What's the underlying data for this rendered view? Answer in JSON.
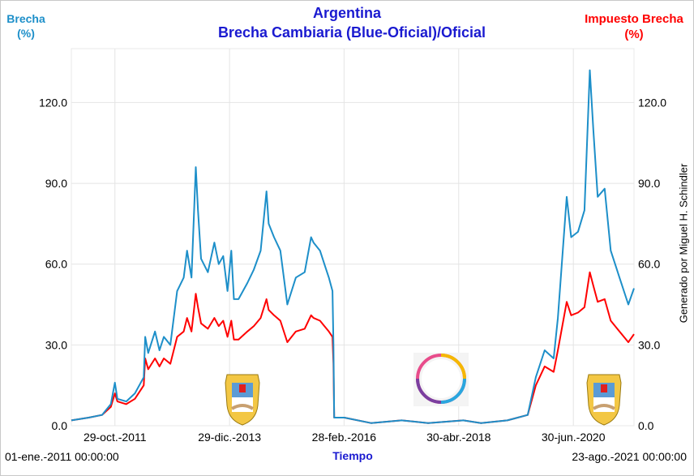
{
  "chart_data": {
    "type": "line",
    "title": "Argentina",
    "subtitle": "Brecha Cambiaria (Blue-Oficial)/Oficial",
    "ylabel_left": {
      "name": "Brecha",
      "unit": "(%)"
    },
    "ylabel_right": {
      "name": "Impuesto Brecha",
      "unit": "(%)"
    },
    "xlabel": "Tiempo",
    "x_range_labels": {
      "start": "01-ene.-2011 00:00:00",
      "end": "23-ago.-2021 00:00:00"
    },
    "credit": "Generado por Miguel H. Schindler",
    "x_domain": [
      "2011-01-01",
      "2021-08-23"
    ],
    "ylim": [
      0,
      140
    ],
    "y_ticks": [
      "0.0",
      "30.0",
      "60.0",
      "90.0",
      "120.0"
    ],
    "x_ticks": [
      {
        "date": "2011-10-29",
        "label": "29-oct.-2011"
      },
      {
        "date": "2013-12-29",
        "label": "29-dic.-2013"
      },
      {
        "date": "2016-02-28",
        "label": "28-feb.-2016"
      },
      {
        "date": "2018-04-30",
        "label": "30-abr.-2018"
      },
      {
        "date": "2020-06-30",
        "label": "30-jun.-2020"
      }
    ],
    "grid": true,
    "series": [
      {
        "name": "Brecha",
        "color": "#1d8fc9",
        "points": [
          [
            "2011-01-01",
            2
          ],
          [
            "2011-05-01",
            3
          ],
          [
            "2011-08-01",
            4
          ],
          [
            "2011-10-01",
            8
          ],
          [
            "2011-10-29",
            16
          ],
          [
            "2011-11-15",
            10
          ],
          [
            "2012-01-15",
            9
          ],
          [
            "2012-03-15",
            12
          ],
          [
            "2012-05-15",
            18
          ],
          [
            "2012-05-25",
            33
          ],
          [
            "2012-06-15",
            27
          ],
          [
            "2012-08-01",
            35
          ],
          [
            "2012-09-01",
            28
          ],
          [
            "2012-10-01",
            33
          ],
          [
            "2012-11-15",
            30
          ],
          [
            "2013-01-01",
            50
          ],
          [
            "2013-02-15",
            55
          ],
          [
            "2013-03-10",
            65
          ],
          [
            "2013-04-10",
            55
          ],
          [
            "2013-05-10",
            96
          ],
          [
            "2013-05-25",
            80
          ],
          [
            "2013-06-15",
            62
          ],
          [
            "2013-08-01",
            57
          ],
          [
            "2013-09-15",
            68
          ],
          [
            "2013-10-15",
            60
          ],
          [
            "2013-11-15",
            63
          ],
          [
            "2013-12-15",
            50
          ],
          [
            "2014-01-10",
            65
          ],
          [
            "2014-01-28",
            47
          ],
          [
            "2014-03-01",
            47
          ],
          [
            "2014-05-01",
            53
          ],
          [
            "2014-06-15",
            58
          ],
          [
            "2014-08-01",
            65
          ],
          [
            "2014-09-10",
            87
          ],
          [
            "2014-09-25",
            75
          ],
          [
            "2014-11-01",
            70
          ],
          [
            "2014-12-15",
            65
          ],
          [
            "2015-02-01",
            45
          ],
          [
            "2015-04-01",
            55
          ],
          [
            "2015-06-01",
            57
          ],
          [
            "2015-07-15",
            70
          ],
          [
            "2015-08-01",
            68
          ],
          [
            "2015-09-15",
            65
          ],
          [
            "2015-10-15",
            60
          ],
          [
            "2015-11-15",
            55
          ],
          [
            "2015-12-10",
            50
          ],
          [
            "2015-12-17",
            30
          ],
          [
            "2015-12-22",
            3
          ],
          [
            "2016-03-01",
            3
          ],
          [
            "2016-09-01",
            1
          ],
          [
            "2017-04-01",
            2
          ],
          [
            "2017-10-01",
            1
          ],
          [
            "2018-06-01",
            2
          ],
          [
            "2018-10-01",
            1
          ],
          [
            "2019-04-01",
            2
          ],
          [
            "2019-08-20",
            4
          ],
          [
            "2019-10-15",
            18
          ],
          [
            "2019-12-15",
            28
          ],
          [
            "2020-02-15",
            25
          ],
          [
            "2020-03-15",
            40
          ],
          [
            "2020-05-15",
            85
          ],
          [
            "2020-06-15",
            70
          ],
          [
            "2020-08-01",
            72
          ],
          [
            "2020-09-15",
            80
          ],
          [
            "2020-10-22",
            132
          ],
          [
            "2020-11-15",
            110
          ],
          [
            "2020-12-15",
            85
          ],
          [
            "2021-02-01",
            88
          ],
          [
            "2021-03-15",
            65
          ],
          [
            "2021-05-15",
            55
          ],
          [
            "2021-07-15",
            45
          ],
          [
            "2021-08-23",
            51
          ]
        ]
      },
      {
        "name": "Impuesto Brecha",
        "color": "#ff0000",
        "points": [
          [
            "2011-01-01",
            2
          ],
          [
            "2011-05-01",
            3
          ],
          [
            "2011-08-01",
            4
          ],
          [
            "2011-10-01",
            7
          ],
          [
            "2011-10-29",
            12
          ],
          [
            "2011-11-15",
            9
          ],
          [
            "2012-01-15",
            8
          ],
          [
            "2012-03-15",
            10
          ],
          [
            "2012-05-15",
            15
          ],
          [
            "2012-05-25",
            25
          ],
          [
            "2012-06-15",
            21
          ],
          [
            "2012-08-01",
            25
          ],
          [
            "2012-09-01",
            22
          ],
          [
            "2012-10-01",
            25
          ],
          [
            "2012-11-15",
            23
          ],
          [
            "2013-01-01",
            33
          ],
          [
            "2013-02-15",
            35
          ],
          [
            "2013-03-10",
            40
          ],
          [
            "2013-04-10",
            35
          ],
          [
            "2013-05-10",
            49
          ],
          [
            "2013-05-25",
            44
          ],
          [
            "2013-06-15",
            38
          ],
          [
            "2013-08-01",
            36
          ],
          [
            "2013-09-15",
            40
          ],
          [
            "2013-10-15",
            37
          ],
          [
            "2013-11-15",
            39
          ],
          [
            "2013-12-15",
            33
          ],
          [
            "2014-01-10",
            39
          ],
          [
            "2014-01-28",
            32
          ],
          [
            "2014-03-01",
            32
          ],
          [
            "2014-05-01",
            35
          ],
          [
            "2014-06-15",
            37
          ],
          [
            "2014-08-01",
            40
          ],
          [
            "2014-09-10",
            47
          ],
          [
            "2014-09-25",
            43
          ],
          [
            "2014-11-01",
            41
          ],
          [
            "2014-12-15",
            39
          ],
          [
            "2015-02-01",
            31
          ],
          [
            "2015-04-01",
            35
          ],
          [
            "2015-06-01",
            36
          ],
          [
            "2015-07-15",
            41
          ],
          [
            "2015-08-01",
            40
          ],
          [
            "2015-09-15",
            39
          ],
          [
            "2015-10-15",
            37
          ],
          [
            "2015-11-15",
            35
          ],
          [
            "2015-12-10",
            33
          ],
          [
            "2015-12-17",
            23
          ],
          [
            "2015-12-22",
            3
          ],
          [
            "2016-03-01",
            3
          ],
          [
            "2016-09-01",
            1
          ],
          [
            "2017-04-01",
            2
          ],
          [
            "2017-10-01",
            1
          ],
          [
            "2018-06-01",
            2
          ],
          [
            "2018-10-01",
            1
          ],
          [
            "2019-04-01",
            2
          ],
          [
            "2019-08-20",
            4
          ],
          [
            "2019-10-15",
            15
          ],
          [
            "2019-12-15",
            22
          ],
          [
            "2020-02-15",
            20
          ],
          [
            "2020-03-15",
            28
          ],
          [
            "2020-05-15",
            46
          ],
          [
            "2020-06-15",
            41
          ],
          [
            "2020-08-01",
            42
          ],
          [
            "2020-09-15",
            44
          ],
          [
            "2020-10-22",
            57
          ],
          [
            "2020-11-15",
            52
          ],
          [
            "2020-12-15",
            46
          ],
          [
            "2021-02-01",
            47
          ],
          [
            "2021-03-15",
            39
          ],
          [
            "2021-05-15",
            35
          ],
          [
            "2021-07-15",
            31
          ],
          [
            "2021-08-23",
            34
          ]
        ]
      }
    ]
  }
}
